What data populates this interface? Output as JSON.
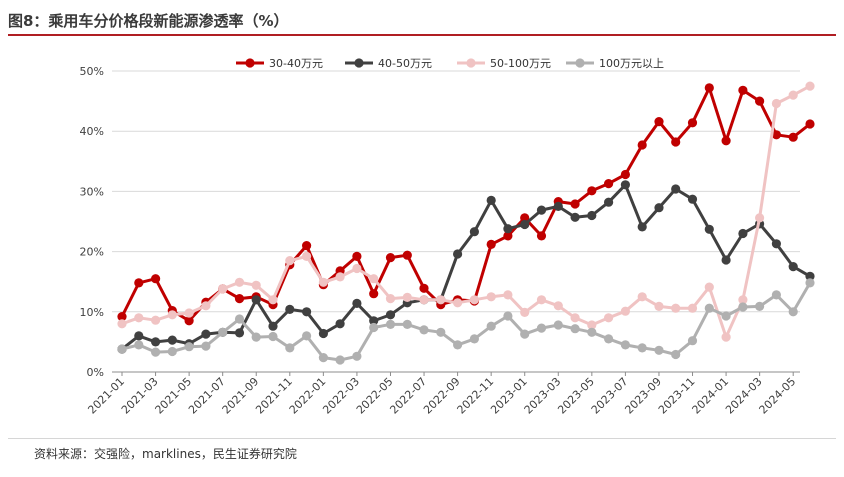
{
  "title": "图8：乘用车分价格段新能源渗透率（%）",
  "source": "资料来源：交强险，marklines，民生证券研究院",
  "chart_data": {
    "type": "line",
    "ylim": [
      0,
      50
    ],
    "yticks": [
      0,
      10,
      20,
      30,
      40,
      50
    ],
    "ytick_labels": [
      "0%",
      "10%",
      "20%",
      "30%",
      "40%",
      "50%"
    ],
    "xlabels_shown": [
      "2021-01",
      "2021-03",
      "2021-05",
      "2021-07",
      "2021-09",
      "2021-11",
      "2022-01",
      "2022-03",
      "2022-05",
      "2022-07",
      "2022-09",
      "2022-11",
      "2023-01",
      "2023-03",
      "2023-05",
      "2023-07",
      "2023-09",
      "2023-11",
      "2024-01",
      "2024-03",
      "2024-05"
    ],
    "x": [
      "2021-01",
      "2021-02",
      "2021-03",
      "2021-04",
      "2021-05",
      "2021-06",
      "2021-07",
      "2021-08",
      "2021-09",
      "2021-10",
      "2021-11",
      "2021-12",
      "2022-01",
      "2022-02",
      "2022-03",
      "2022-04",
      "2022-05",
      "2022-06",
      "2022-07",
      "2022-08",
      "2022-09",
      "2022-10",
      "2022-11",
      "2022-12",
      "2023-01",
      "2023-02",
      "2023-03",
      "2023-04",
      "2023-05",
      "2023-06",
      "2023-07",
      "2023-08",
      "2023-09",
      "2023-10",
      "2023-11",
      "2023-12",
      "2024-01",
      "2024-02",
      "2024-03",
      "2024-04",
      "2024-05",
      "2024-06"
    ],
    "legend_position": "top",
    "grid": "horizontal",
    "series": [
      {
        "name": "30-40万元",
        "color": "#c00000",
        "values": [
          9.2,
          14.8,
          15.5,
          10.2,
          8.5,
          11.6,
          13.8,
          12.2,
          12.5,
          11.2,
          17.8,
          21.0,
          14.5,
          16.8,
          19.2,
          13.0,
          19.0,
          19.4,
          13.9,
          11.2,
          12.0,
          11.8,
          21.2,
          22.6,
          25.6,
          22.6,
          28.3,
          27.9,
          30.1,
          31.3,
          32.8,
          37.7,
          41.6,
          38.2,
          41.4,
          47.2,
          38.4,
          46.8,
          45.0,
          39.4,
          39.0,
          41.2
        ]
      },
      {
        "name": "40-50万元",
        "color": "#404040",
        "values": [
          3.8,
          6.0,
          5.0,
          5.3,
          4.7,
          6.3,
          6.6,
          6.5,
          12.0,
          7.6,
          10.4,
          10.0,
          6.4,
          8.0,
          11.4,
          8.5,
          9.5,
          11.5,
          12.0,
          12.0,
          19.6,
          23.3,
          28.5,
          23.8,
          24.5,
          26.9,
          27.5,
          25.7,
          26.0,
          28.2,
          31.1,
          24.1,
          27.3,
          30.4,
          28.7,
          23.7,
          18.6,
          23.0,
          24.6,
          21.3,
          17.5,
          15.9
        ]
      },
      {
        "name": "50-100万元",
        "color": "#f0c3c3",
        "values": [
          8.0,
          9.0,
          8.6,
          9.5,
          9.8,
          11.0,
          13.8,
          14.9,
          14.4,
          12.0,
          18.5,
          19.2,
          14.9,
          15.8,
          17.2,
          15.5,
          12.2,
          12.4,
          12.0,
          12.0,
          11.5,
          12.0,
          12.5,
          12.8,
          9.9,
          12.0,
          11.0,
          9.0,
          7.8,
          9.0,
          10.1,
          12.5,
          10.9,
          10.6,
          10.6,
          14.1,
          5.8,
          12.0,
          25.6,
          44.6,
          46.0,
          47.5
        ]
      },
      {
        "name": "100万元以上",
        "color": "#b0b0b0",
        "values": [
          3.8,
          4.5,
          3.3,
          3.4,
          4.2,
          4.3,
          6.6,
          8.8,
          5.8,
          5.9,
          4.0,
          6.0,
          2.4,
          2.0,
          2.6,
          7.4,
          7.9,
          7.9,
          7.0,
          6.6,
          4.5,
          5.5,
          7.6,
          9.3,
          6.3,
          7.3,
          7.8,
          7.2,
          6.6,
          5.5,
          4.5,
          4.0,
          3.6,
          2.9,
          5.2,
          10.6,
          9.3,
          10.8,
          10.9,
          12.8,
          10.0,
          14.8
        ]
      }
    ]
  }
}
